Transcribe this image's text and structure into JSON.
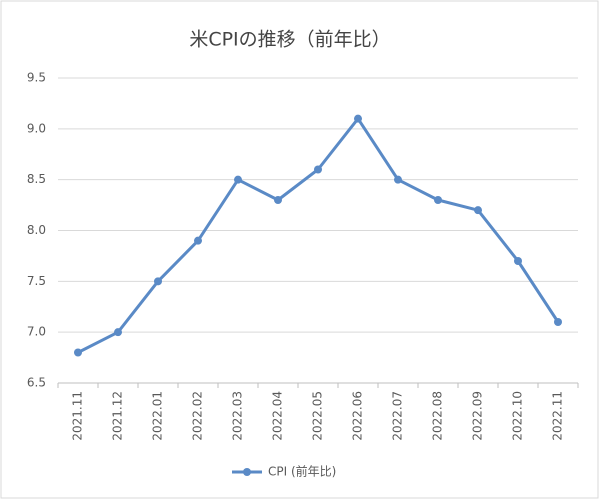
{
  "chart_data": {
    "type": "line",
    "title": "米CPIの推移（前年比）",
    "categories": [
      "2021.11",
      "2021.12",
      "2022.01",
      "2022.02",
      "2022.03",
      "2022.04",
      "2022.05",
      "2022.06",
      "2022.07",
      "2022.08",
      "2022.09",
      "2022.10",
      "2022.11"
    ],
    "series": [
      {
        "name": "CPI (前年比)",
        "color": "#5a8ac6",
        "values": [
          6.8,
          7.0,
          7.5,
          7.9,
          8.5,
          8.3,
          8.6,
          9.1,
          8.5,
          8.3,
          8.2,
          7.7,
          7.1
        ]
      }
    ],
    "ylim": [
      6.5,
      9.5
    ],
    "yticks": [
      6.5,
      {
        "value": 7,
        "label": "7.0"
      },
      7.5,
      {
        "value": 8,
        "label": "8.0"
      },
      8.5,
      {
        "value": 9,
        "label": "9.0"
      },
      9.5
    ],
    "grid": true,
    "legend": "bottom"
  }
}
